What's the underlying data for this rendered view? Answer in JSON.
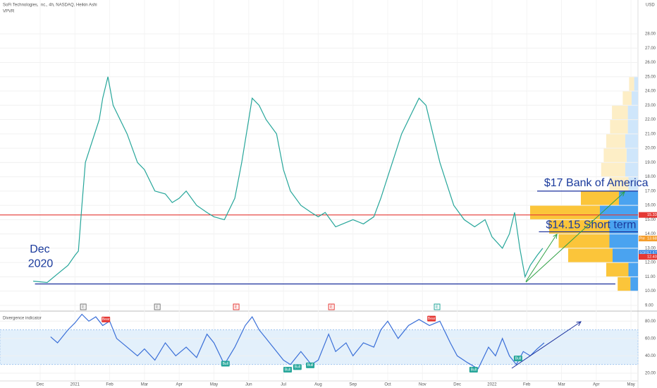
{
  "header": {
    "title": "SoFi Technologies, Inc., 4h, NASDAQ, Heikin Ashi",
    "study": "VPVR",
    "currency": "USD"
  },
  "chart_data": [
    {
      "type": "line",
      "xlim": [
        -1.156,
        17.2
      ],
      "ylim": [
        8.65,
        30.37
      ],
      "xticks": [
        {
          "value": 0,
          "label": "Dec"
        },
        {
          "value": 1,
          "label": "2021"
        },
        {
          "value": 2,
          "label": "Feb"
        },
        {
          "value": 3,
          "label": "Mar"
        },
        {
          "value": 4,
          "label": "Apr"
        },
        {
          "value": 5,
          "label": "May"
        },
        {
          "value": 6,
          "label": "Jun"
        },
        {
          "value": 7,
          "label": "Jul"
        },
        {
          "value": 8,
          "label": "Aug"
        },
        {
          "value": 9,
          "label": "Sep"
        },
        {
          "value": 10,
          "label": "Oct"
        },
        {
          "value": 11,
          "label": "Nov"
        },
        {
          "value": 12,
          "label": "Dec"
        },
        {
          "value": 13,
          "label": "2022"
        },
        {
          "value": 14,
          "label": "Feb"
        },
        {
          "value": 15,
          "label": "Mar"
        },
        {
          "value": 16,
          "label": "Apr"
        },
        {
          "value": 17,
          "label": "May"
        }
      ],
      "yticks": [
        {
          "value": 9,
          "label": "9.00"
        },
        {
          "value": 10,
          "label": "10.00"
        },
        {
          "value": 11,
          "label": "11.00"
        },
        {
          "value": 12,
          "label": "12.00"
        },
        {
          "value": 13,
          "label": "13.00"
        },
        {
          "value": 14,
          "label": "14.00"
        },
        {
          "value": 15,
          "label": "15.00"
        },
        {
          "value": 16,
          "label": "16.00"
        },
        {
          "value": 17,
          "label": "17.00"
        },
        {
          "value": 18,
          "label": "18.00"
        },
        {
          "value": 19,
          "label": "19.00"
        },
        {
          "value": 20,
          "label": "20.00"
        },
        {
          "value": 21,
          "label": "21.00"
        },
        {
          "value": 22,
          "label": "22.00"
        },
        {
          "value": 23,
          "label": "23.00"
        },
        {
          "value": 24,
          "label": "24.00"
        },
        {
          "value": 25,
          "label": "25.00"
        },
        {
          "value": 26,
          "label": "26.00"
        },
        {
          "value": 27,
          "label": "27.00"
        },
        {
          "value": 28,
          "label": "28.00"
        }
      ],
      "series": [
        {
          "color": "#26a69a",
          "x": [
            -0.2,
            0.2,
            0.5,
            0.8,
            1.0,
            1.1,
            1.2,
            1.3,
            1.5,
            1.7,
            1.8,
            1.95,
            2.1,
            2.3,
            2.5,
            2.8,
            3.0,
            3.3,
            3.6,
            3.8,
            4.0,
            4.2,
            4.5,
            4.8,
            5.0,
            5.3,
            5.6,
            5.8,
            6.0,
            6.1,
            6.3,
            6.5,
            6.8,
            7.0,
            7.2,
            7.5,
            7.8,
            8.0,
            8.2,
            8.5,
            8.8,
            9.0,
            9.3,
            9.6,
            9.8,
            10.0,
            10.2,
            10.4,
            10.7,
            10.9,
            11.1,
            11.3,
            11.5,
            11.7,
            11.9,
            12.2,
            12.5,
            12.8,
            13.0,
            13.3,
            13.5,
            13.65,
            13.8,
            13.95,
            14.1,
            14.3,
            14.46
          ],
          "values": [
            10.7,
            10.6,
            11.2,
            11.8,
            12.5,
            12.8,
            16,
            19,
            20.5,
            22,
            23.5,
            25,
            23,
            22,
            21,
            19,
            18.5,
            17,
            16.8,
            16.2,
            16.5,
            17,
            16,
            15.5,
            15.2,
            15,
            16.5,
            19,
            22,
            23.5,
            23,
            22,
            21,
            18.5,
            17,
            16,
            15.5,
            15.2,
            15.5,
            14.5,
            14.8,
            15,
            14.7,
            15.2,
            16.5,
            18,
            19.5,
            21,
            22.5,
            23.5,
            23,
            21,
            19,
            17.5,
            16,
            15,
            14.5,
            15,
            13.8,
            13,
            14,
            15.5,
            13,
            11,
            11.8,
            12.5,
            13
          ]
        }
      ],
      "levels": [
        {
          "value": 15.33,
          "color": "#e53935",
          "from": -1.156,
          "to": 17.2
        },
        {
          "value": 17,
          "color": "#1a2f9c",
          "from": 14.3,
          "to": 17.2
        },
        {
          "value": 14.15,
          "color": "#1a2f9c",
          "from": 14.35,
          "to": 17.2
        },
        {
          "value": 10.5,
          "color": "#1a2f9c",
          "from": -0.15,
          "to": 16.55
        }
      ],
      "annotations": [
        {
          "text": "$17 Bank of America",
          "x": 14.5,
          "y": 17.55
        },
        {
          "text": "$14.15  Short term",
          "x": 14.55,
          "y": 14.6
        },
        {
          "text": "Dec",
          "x": -0.3,
          "y": 12.9
        },
        {
          "text": "2020",
          "x": -0.35,
          "y": 11.9
        }
      ],
      "price_tags": [
        {
          "label": "15.33",
          "value": 15.33,
          "color": "#e53935"
        },
        {
          "name": "Pre",
          "label": "13.68",
          "value": 13.68,
          "color": "#f59d2a"
        },
        {
          "name": "SOFI",
          "label": "12.67",
          "value": 12.67,
          "color": "#2a7de1"
        },
        {
          "label": "12.40",
          "value": 12.4,
          "color": "#e53935"
        }
      ],
      "events": [
        {
          "label": "E",
          "x": 1.24,
          "color": "#777"
        },
        {
          "label": "E",
          "x": 3.37,
          "color": "#777"
        },
        {
          "label": "E",
          "x": 5.64,
          "color": "#e53935"
        },
        {
          "label": "E",
          "x": 8.38,
          "color": "#e53935"
        },
        {
          "label": "E",
          "x": 11.42,
          "color": "#26a69a"
        }
      ],
      "volume_profile": {
        "levels": [
          10.5,
          11.5,
          12.5,
          13.5,
          14.5,
          15.5,
          16.5,
          17.5,
          18.5,
          19.5,
          20.5,
          21.5,
          22.5,
          23.5,
          24.5
        ],
        "buy": [
          20,
          35,
          70,
          80,
          95,
          110,
          60,
          30,
          38,
          36,
          30,
          28,
          25,
          14,
          8
        ],
        "sell": [
          12,
          15,
          40,
          45,
          45,
          60,
          30,
          15,
          20,
          18,
          20,
          16,
          16,
          10,
          6
        ]
      }
    },
    {
      "type": "line",
      "title": "Divergence indicator",
      "xlim": [
        -1.156,
        17.2
      ],
      "ylim": [
        11,
        90
      ],
      "yticks": [
        {
          "value": 20,
          "label": "20.00"
        },
        {
          "value": 40,
          "label": "40.00"
        },
        {
          "value": 60,
          "label": "60.00"
        },
        {
          "value": 80,
          "label": "80.00"
        }
      ],
      "band": [
        30,
        70
      ],
      "series": [
        {
          "color": "#3a6fd8",
          "x": [
            0.3,
            0.5,
            0.8,
            1.0,
            1.2,
            1.4,
            1.6,
            1.8,
            2.0,
            2.2,
            2.5,
            2.8,
            3.0,
            3.3,
            3.6,
            3.9,
            4.2,
            4.5,
            4.8,
            5.0,
            5.3,
            5.6,
            5.9,
            6.1,
            6.3,
            6.5,
            6.8,
            7.0,
            7.2,
            7.5,
            7.8,
            8.0,
            8.3,
            8.5,
            8.8,
            9.0,
            9.3,
            9.6,
            9.8,
            10.0,
            10.3,
            10.6,
            10.9,
            11.2,
            11.5,
            11.8,
            12.0,
            12.3,
            12.6,
            12.9,
            13.1,
            13.3,
            13.5,
            13.7,
            13.9,
            14.1,
            14.3,
            14.5
          ],
          "values": [
            62,
            55,
            70,
            78,
            88,
            80,
            85,
            75,
            80,
            60,
            50,
            40,
            48,
            35,
            55,
            40,
            50,
            38,
            65,
            55,
            30,
            50,
            75,
            85,
            70,
            60,
            45,
            35,
            30,
            45,
            30,
            35,
            65,
            45,
            55,
            40,
            55,
            50,
            70,
            80,
            60,
            75,
            82,
            75,
            80,
            55,
            40,
            32,
            25,
            50,
            40,
            60,
            40,
            30,
            45,
            40,
            48,
            55
          ]
        }
      ],
      "signals": [
        {
          "label": "Bear",
          "x": 1.89,
          "y": 82,
          "color": "#e53935"
        },
        {
          "label": "Bear",
          "x": 11.26,
          "y": 83,
          "color": "#e53935"
        },
        {
          "label": "Bull",
          "x": 5.33,
          "y": 31,
          "color": "#26a69a"
        },
        {
          "label": "Bull",
          "x": 7.12,
          "y": 24,
          "color": "#26a69a"
        },
        {
          "label": "Bull",
          "x": 7.4,
          "y": 27,
          "color": "#26a69a"
        },
        {
          "label": "Bull",
          "x": 7.77,
          "y": 29,
          "color": "#26a69a"
        },
        {
          "label": "Bull",
          "x": 12.47,
          "y": 24,
          "color": "#26a69a"
        },
        {
          "label": "Bull",
          "x": 13.75,
          "y": 37,
          "color": "#26a69a"
        }
      ]
    }
  ]
}
